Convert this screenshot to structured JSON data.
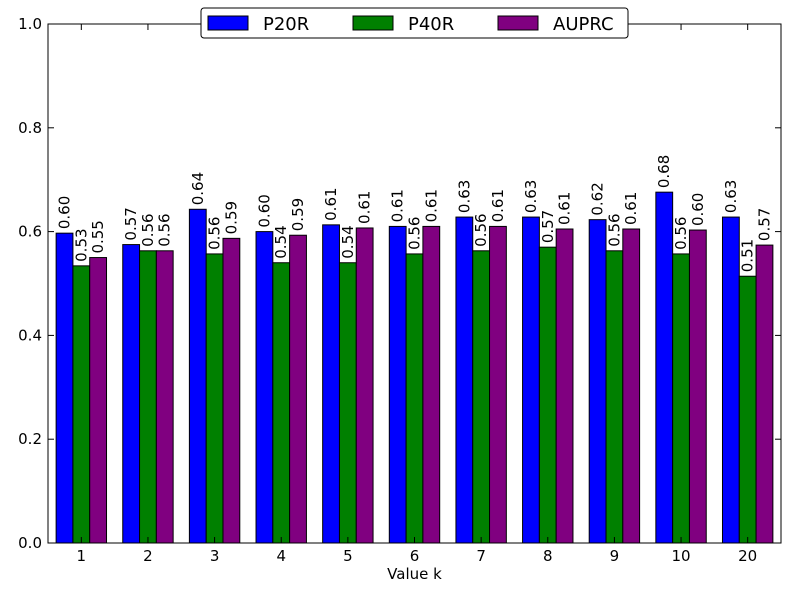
{
  "chart_data": {
    "type": "bar",
    "title": "",
    "xlabel": "Value k",
    "ylabel": "",
    "ylim": [
      0,
      1.0
    ],
    "yticks": [
      "0.0",
      "0.2",
      "0.4",
      "0.6",
      "0.8",
      "1.0"
    ],
    "categories": [
      "1",
      "2",
      "3",
      "4",
      "5",
      "6",
      "7",
      "8",
      "9",
      "10",
      "20"
    ],
    "grid": false,
    "legend_position": "top-center",
    "series": [
      {
        "name": "P20R",
        "color": "#0000ff",
        "values": [
          0.597,
          0.575,
          0.643,
          0.6,
          0.613,
          0.61,
          0.628,
          0.628,
          0.623,
          0.676,
          0.628
        ],
        "labels": [
          "0.60",
          "0.57",
          "0.64",
          "0.60",
          "0.61",
          "0.61",
          "0.63",
          "0.63",
          "0.62",
          "0.68",
          "0.63"
        ]
      },
      {
        "name": "P40R",
        "color": "#008000",
        "values": [
          0.534,
          0.563,
          0.557,
          0.54,
          0.54,
          0.557,
          0.563,
          0.57,
          0.563,
          0.557,
          0.514
        ],
        "labels": [
          "0.53",
          "0.56",
          "0.56",
          "0.54",
          "0.54",
          "0.56",
          "0.56",
          "0.57",
          "0.56",
          "0.56",
          "0.51"
        ]
      },
      {
        "name": "AUPRC",
        "color": "#800080",
        "values": [
          0.55,
          0.563,
          0.587,
          0.593,
          0.607,
          0.61,
          0.61,
          0.605,
          0.605,
          0.603,
          0.574
        ],
        "labels": [
          "0.55",
          "0.56",
          "0.59",
          "0.59",
          "0.61",
          "0.61",
          "0.61",
          "0.61",
          "0.61",
          "0.60",
          "0.57"
        ]
      }
    ]
  }
}
